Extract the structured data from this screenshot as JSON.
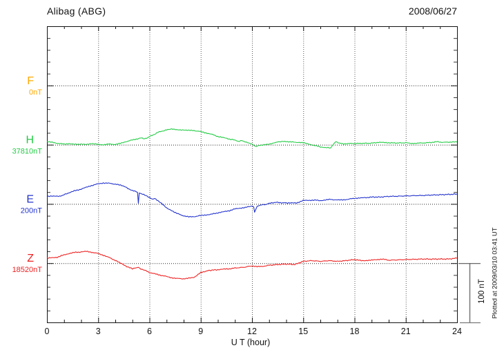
{
  "chart_data": {
    "type": "line",
    "title": "Alibag (ABG)",
    "date": "2008/06/27",
    "xlabel": "U T (hour)",
    "x_range": [
      0,
      24
    ],
    "x_major_ticks": [
      0,
      3,
      6,
      9,
      12,
      15,
      18,
      21,
      24
    ],
    "x_minor_tick_step_hours": 1,
    "y_minor_tick_step_nT": 20,
    "baseline_spacing_nT": 100,
    "grid": "dotted vertical lines at 3-hour marks, dotted horizontal baseline per channel",
    "scale_bar": {
      "label": "100 nT",
      "nT": 100
    },
    "plotted_at": "Plotted at 2009/03/10 03:41 UT",
    "series": [
      {
        "name": "F",
        "baseline_label": "0nT",
        "baseline_value_nT": 0,
        "color": "#FFA800",
        "note": "no data trace visible, baseline only",
        "points": []
      },
      {
        "name": "H",
        "baseline_label": "37810nT",
        "baseline_value_nT": 37810,
        "color": "#22CC44",
        "points": [
          [
            0,
            5
          ],
          [
            0.3,
            4
          ],
          [
            0.6,
            2.5
          ],
          [
            1,
            1
          ],
          [
            1.3,
            2
          ],
          [
            1.6,
            0.5
          ],
          [
            2,
            1
          ],
          [
            2.3,
            0
          ],
          [
            2.6,
            2
          ],
          [
            3,
            0.5
          ],
          [
            3.3,
            0
          ],
          [
            3.6,
            1
          ],
          [
            4,
            0.5
          ],
          [
            4.3,
            2
          ],
          [
            4.6,
            5
          ],
          [
            5,
            8
          ],
          [
            5.3,
            10
          ],
          [
            5.5,
            12
          ],
          [
            5.7,
            10
          ],
          [
            5.9,
            12
          ],
          [
            6.1,
            15
          ],
          [
            6.3,
            17
          ],
          [
            6.5,
            21
          ],
          [
            6.8,
            23
          ],
          [
            7,
            25
          ],
          [
            7.3,
            27
          ],
          [
            7.5,
            26
          ],
          [
            7.8,
            25
          ],
          [
            8,
            25
          ],
          [
            8.3,
            24
          ],
          [
            8.6,
            24
          ],
          [
            9,
            22
          ],
          [
            9.3,
            20
          ],
          [
            9.6,
            18
          ],
          [
            10,
            14
          ],
          [
            10.3,
            12
          ],
          [
            10.6,
            10
          ],
          [
            11,
            8
          ],
          [
            11.2,
            5
          ],
          [
            11.4,
            7
          ],
          [
            11.6,
            5
          ],
          [
            11.8,
            3
          ],
          [
            12,
            1
          ],
          [
            12.2,
            -3
          ],
          [
            12.4,
            -1
          ],
          [
            12.7,
            0
          ],
          [
            13,
            0.5
          ],
          [
            13.3,
            3
          ],
          [
            13.5,
            5
          ],
          [
            14,
            5.5
          ],
          [
            14.3,
            4.5
          ],
          [
            14.7,
            4
          ],
          [
            15,
            3
          ],
          [
            15.3,
            1.5
          ],
          [
            15.6,
            -1
          ],
          [
            16,
            -3.5
          ],
          [
            16.3,
            -5
          ],
          [
            16.6,
            -5.5
          ],
          [
            16.8,
            2
          ],
          [
            16.9,
            5.5
          ],
          [
            17.1,
            3
          ],
          [
            17.3,
            1.5
          ],
          [
            17.6,
            2
          ],
          [
            18,
            2
          ],
          [
            18.5,
            2.3
          ],
          [
            19,
            2.5
          ],
          [
            19.4,
            4
          ],
          [
            19.7,
            3.5
          ],
          [
            20,
            3.3
          ],
          [
            20.5,
            2.8
          ],
          [
            21,
            3.3
          ],
          [
            21.3,
            2
          ],
          [
            21.6,
            2.5
          ],
          [
            22,
            3
          ],
          [
            22.4,
            3.5
          ],
          [
            22.8,
            5
          ],
          [
            23.2,
            4
          ],
          [
            23.6,
            4.5
          ],
          [
            24,
            4.5
          ]
        ]
      },
      {
        "name": "E",
        "baseline_label": "200nT",
        "baseline_value_nT": 200,
        "color": "#2233CC",
        "points": [
          [
            0,
            12.5
          ],
          [
            0.3,
            13
          ],
          [
            0.6,
            13.5
          ],
          [
            0.8,
            13
          ],
          [
            1,
            16
          ],
          [
            1.3,
            19
          ],
          [
            1.6,
            22
          ],
          [
            2,
            25
          ],
          [
            2.3,
            28
          ],
          [
            2.6,
            31
          ],
          [
            3,
            34
          ],
          [
            3.3,
            35.5
          ],
          [
            3.6,
            35
          ],
          [
            4,
            33.5
          ],
          [
            4.3,
            31.5
          ],
          [
            4.6,
            29
          ],
          [
            4.8,
            25
          ],
          [
            5,
            22.5
          ],
          [
            5.2,
            21
          ],
          [
            5.3,
            19.5
          ],
          [
            5.35,
            1
          ],
          [
            5.4,
            18.5
          ],
          [
            5.6,
            16.5
          ],
          [
            5.8,
            14
          ],
          [
            6,
            11
          ],
          [
            6.2,
            8
          ],
          [
            6.3,
            9
          ],
          [
            6.5,
            5
          ],
          [
            6.7,
            1
          ],
          [
            7,
            -7
          ],
          [
            7.3,
            -11
          ],
          [
            7.6,
            -16
          ],
          [
            8,
            -20
          ],
          [
            8.3,
            -22
          ],
          [
            8.6,
            -21.5
          ],
          [
            9,
            -19.5
          ],
          [
            9.3,
            -18.5
          ],
          [
            9.6,
            -17.5
          ],
          [
            10,
            -15
          ],
          [
            10.3,
            -13.5
          ],
          [
            10.6,
            -12
          ],
          [
            11,
            -8.5
          ],
          [
            11.3,
            -7
          ],
          [
            11.6,
            -6
          ],
          [
            12,
            -3.5
          ],
          [
            12.1,
            -5
          ],
          [
            12.15,
            -14
          ],
          [
            12.3,
            -4
          ],
          [
            12.5,
            -2
          ],
          [
            12.8,
            -1
          ],
          [
            13,
            0.8
          ],
          [
            13.3,
            2.5
          ],
          [
            13.5,
            2.7
          ],
          [
            13.8,
            2
          ],
          [
            14,
            1.9
          ],
          [
            14.3,
            1.6
          ],
          [
            14.6,
            1.5
          ],
          [
            15,
            5.8
          ],
          [
            15.3,
            6.2
          ],
          [
            15.6,
            6.5
          ],
          [
            16,
            5.8
          ],
          [
            16.3,
            6.5
          ],
          [
            16.6,
            7.7
          ],
          [
            17,
            6.5
          ],
          [
            17.3,
            7
          ],
          [
            17.6,
            7.7
          ],
          [
            18,
            9.7
          ],
          [
            18.3,
            10
          ],
          [
            18.6,
            10.5
          ],
          [
            19,
            11.6
          ],
          [
            19.5,
            11.6
          ],
          [
            20,
            12.8
          ],
          [
            20.5,
            13
          ],
          [
            21,
            13.6
          ],
          [
            21.5,
            14
          ],
          [
            22,
            14.3
          ],
          [
            22.5,
            15
          ],
          [
            23,
            15.5
          ],
          [
            23.5,
            16
          ],
          [
            24,
            16.7
          ]
        ]
      },
      {
        "name": "Z",
        "baseline_label": "18520nT",
        "baseline_value_nT": 18520,
        "color": "#EE2222",
        "points": [
          [
            0,
            8.5
          ],
          [
            0.3,
            9
          ],
          [
            0.6,
            10
          ],
          [
            1,
            14
          ],
          [
            1.3,
            16.5
          ],
          [
            1.6,
            18
          ],
          [
            2,
            19
          ],
          [
            2.3,
            19.8
          ],
          [
            2.6,
            18.5
          ],
          [
            3,
            16.3
          ],
          [
            3.3,
            13.5
          ],
          [
            3.6,
            10
          ],
          [
            4,
            4.7
          ],
          [
            4.3,
            0
          ],
          [
            4.6,
            -4.5
          ],
          [
            5,
            -9.7
          ],
          [
            5.2,
            -8
          ],
          [
            5.35,
            -7
          ],
          [
            5.5,
            -9.5
          ],
          [
            5.8,
            -12.5
          ],
          [
            6,
            -16
          ],
          [
            6.3,
            -18
          ],
          [
            6.6,
            -20
          ],
          [
            7,
            -22.5
          ],
          [
            7.3,
            -24.5
          ],
          [
            7.6,
            -25.8
          ],
          [
            8,
            -26.3
          ],
          [
            8.3,
            -25.5
          ],
          [
            8.6,
            -24
          ],
          [
            9,
            -16
          ],
          [
            9.3,
            -13.5
          ],
          [
            9.5,
            -12.2
          ],
          [
            10,
            -11
          ],
          [
            10.3,
            -10.3
          ],
          [
            10.6,
            -9.7
          ],
          [
            11,
            -8.2
          ],
          [
            11.5,
            -7
          ],
          [
            12,
            -4.5
          ],
          [
            12.3,
            -6
          ],
          [
            12.6,
            -5.5
          ],
          [
            13,
            -3.5
          ],
          [
            13.5,
            -2.3
          ],
          [
            14,
            -1.5
          ],
          [
            14.5,
            -2.3
          ],
          [
            15,
            3.1
          ],
          [
            15.5,
            4.3
          ],
          [
            16,
            3.1
          ],
          [
            16.5,
            4.3
          ],
          [
            17,
            3.1
          ],
          [
            17.5,
            4.3
          ],
          [
            18,
            6.2
          ],
          [
            18.4,
            4.3
          ],
          [
            19,
            5
          ],
          [
            19.6,
            7
          ],
          [
            20,
            5
          ],
          [
            20.5,
            5.5
          ],
          [
            21,
            6.2
          ],
          [
            21.5,
            6.5
          ],
          [
            22,
            7
          ],
          [
            22.5,
            6.8
          ],
          [
            23,
            7
          ],
          [
            23.5,
            7
          ],
          [
            24,
            8.5
          ]
        ]
      }
    ]
  }
}
